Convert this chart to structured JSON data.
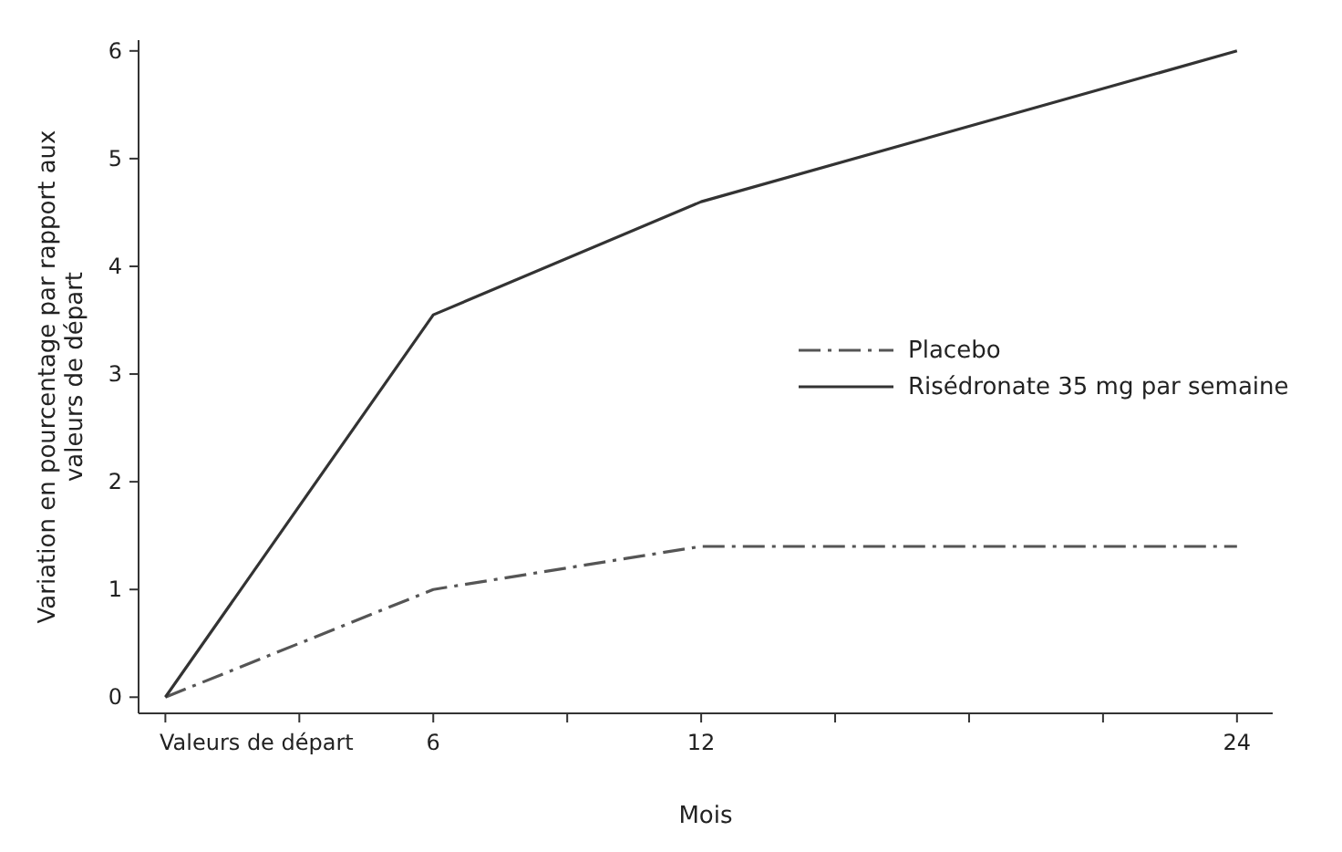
{
  "chart_data": {
    "type": "line",
    "xlabel": "Mois",
    "ylabel": "Variation en pourcentage par rapport aux valeurs de départ",
    "x": [
      0,
      6,
      12,
      24
    ],
    "series": [
      {
        "name": "Placebo",
        "color": "#555555",
        "line_style": "dashed",
        "values": [
          0,
          1.0,
          1.4,
          1.4
        ]
      },
      {
        "name": "Risédronate 35 mg par semaine",
        "color": "#333333",
        "line_style": "solid",
        "values": [
          0,
          3.55,
          4.6,
          6.0
        ]
      }
    ],
    "xlim": [
      -0.6,
      24.8
    ],
    "xticks": [
      {
        "value": 0,
        "label": "Valeurs de départ"
      },
      {
        "value": 3,
        "label": null
      },
      6,
      {
        "value": 9,
        "label": null
      },
      12,
      {
        "value": 15,
        "label": null
      },
      {
        "value": 18,
        "label": null
      },
      {
        "value": 21,
        "label": null
      },
      24
    ],
    "ylim": [
      -0.15,
      6.1
    ],
    "yticks": [
      0,
      1,
      2,
      3,
      4,
      5,
      6
    ],
    "legend": "right",
    "grid": false,
    "marker": "none"
  }
}
